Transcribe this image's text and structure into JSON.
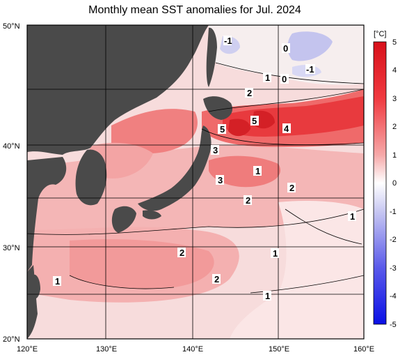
{
  "title": "Monthly mean SST anomalies for Jul. 2024",
  "axes": {
    "lat_ticks": [
      "50°N",
      "40°N",
      "30°N",
      "20°N"
    ],
    "lon_ticks": [
      "120°E",
      "130°E",
      "140°E",
      "150°E",
      "160°E"
    ]
  },
  "colorbar": {
    "unit": "[°C]",
    "ticks": [
      "5",
      "4",
      "3",
      "2",
      "1",
      "0",
      "-1",
      "-2",
      "-3",
      "-4",
      "-5"
    ],
    "min": -5,
    "max": 5,
    "warm_color": "#e8202a",
    "cold_color": "#1a22e8"
  },
  "contour_labels": [
    "-1",
    "0",
    "1",
    "0",
    "-1",
    "2",
    "5",
    "5",
    "4",
    "3",
    "1",
    "3",
    "2",
    "2",
    "1",
    "2",
    "1",
    "2",
    "1",
    "1"
  ],
  "colors": {
    "land": "#4a4a4a",
    "grid": "#000000"
  }
}
